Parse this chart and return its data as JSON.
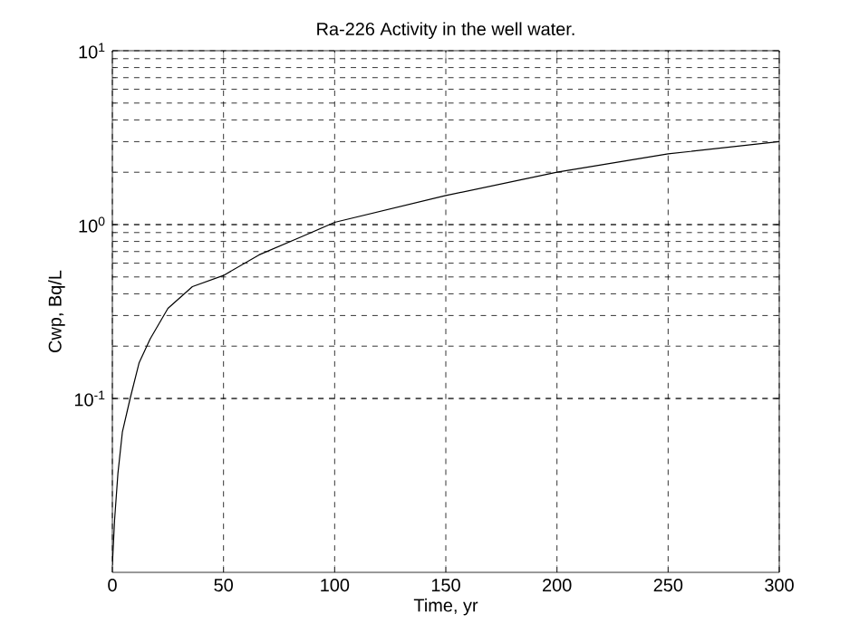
{
  "chart_data": {
    "type": "line",
    "title": "Ra-226 Activity in the well water.",
    "xlabel": "Time, yr",
    "ylabel": "Cwp, Bq/L",
    "log": "y",
    "grid": true,
    "line_style": "solid",
    "marker": "none",
    "x": [
      0,
      1,
      2.5,
      4.5,
      8,
      12,
      17,
      25,
      36,
      50,
      66,
      85,
      100,
      150,
      200,
      250,
      300
    ],
    "series": [
      {
        "color": "#000000",
        "values": [
          0.011,
          0.02,
          0.037,
          0.064,
          0.1,
          0.16,
          0.22,
          0.33,
          0.44,
          0.51,
          0.67,
          0.85,
          1.03,
          1.47,
          2.0,
          2.55,
          3.0
        ]
      }
    ],
    "xlim": [
      0,
      300
    ],
    "ylim": [
      0.01,
      10
    ],
    "xticks": [
      0,
      50,
      100,
      150,
      200,
      250,
      300
    ],
    "yticks": [
      {
        "value": 0.1,
        "label": "10$^{-1}$"
      },
      {
        "value": 1,
        "label": "10$^{0}$"
      },
      {
        "value": 10,
        "label": "10$^{1}$"
      }
    ]
  }
}
